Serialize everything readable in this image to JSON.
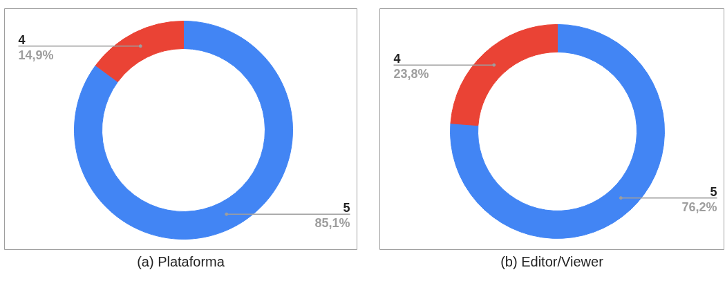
{
  "chart_data": [
    {
      "type": "donut",
      "title": "(a) Plataforma",
      "categories": [
        "5",
        "4"
      ],
      "values": [
        85.1,
        14.9
      ],
      "colors": [
        "#4285f4",
        "#ea4335"
      ],
      "value_labels": [
        "85,1%",
        "14,9%"
      ]
    },
    {
      "type": "donut",
      "title": "(b) Editor/Viewer",
      "categories": [
        "5",
        "4"
      ],
      "values": [
        76.2,
        23.8
      ],
      "colors": [
        "#4285f4",
        "#ea4335"
      ],
      "value_labels": [
        "76,2%",
        "23,8%"
      ]
    }
  ]
}
